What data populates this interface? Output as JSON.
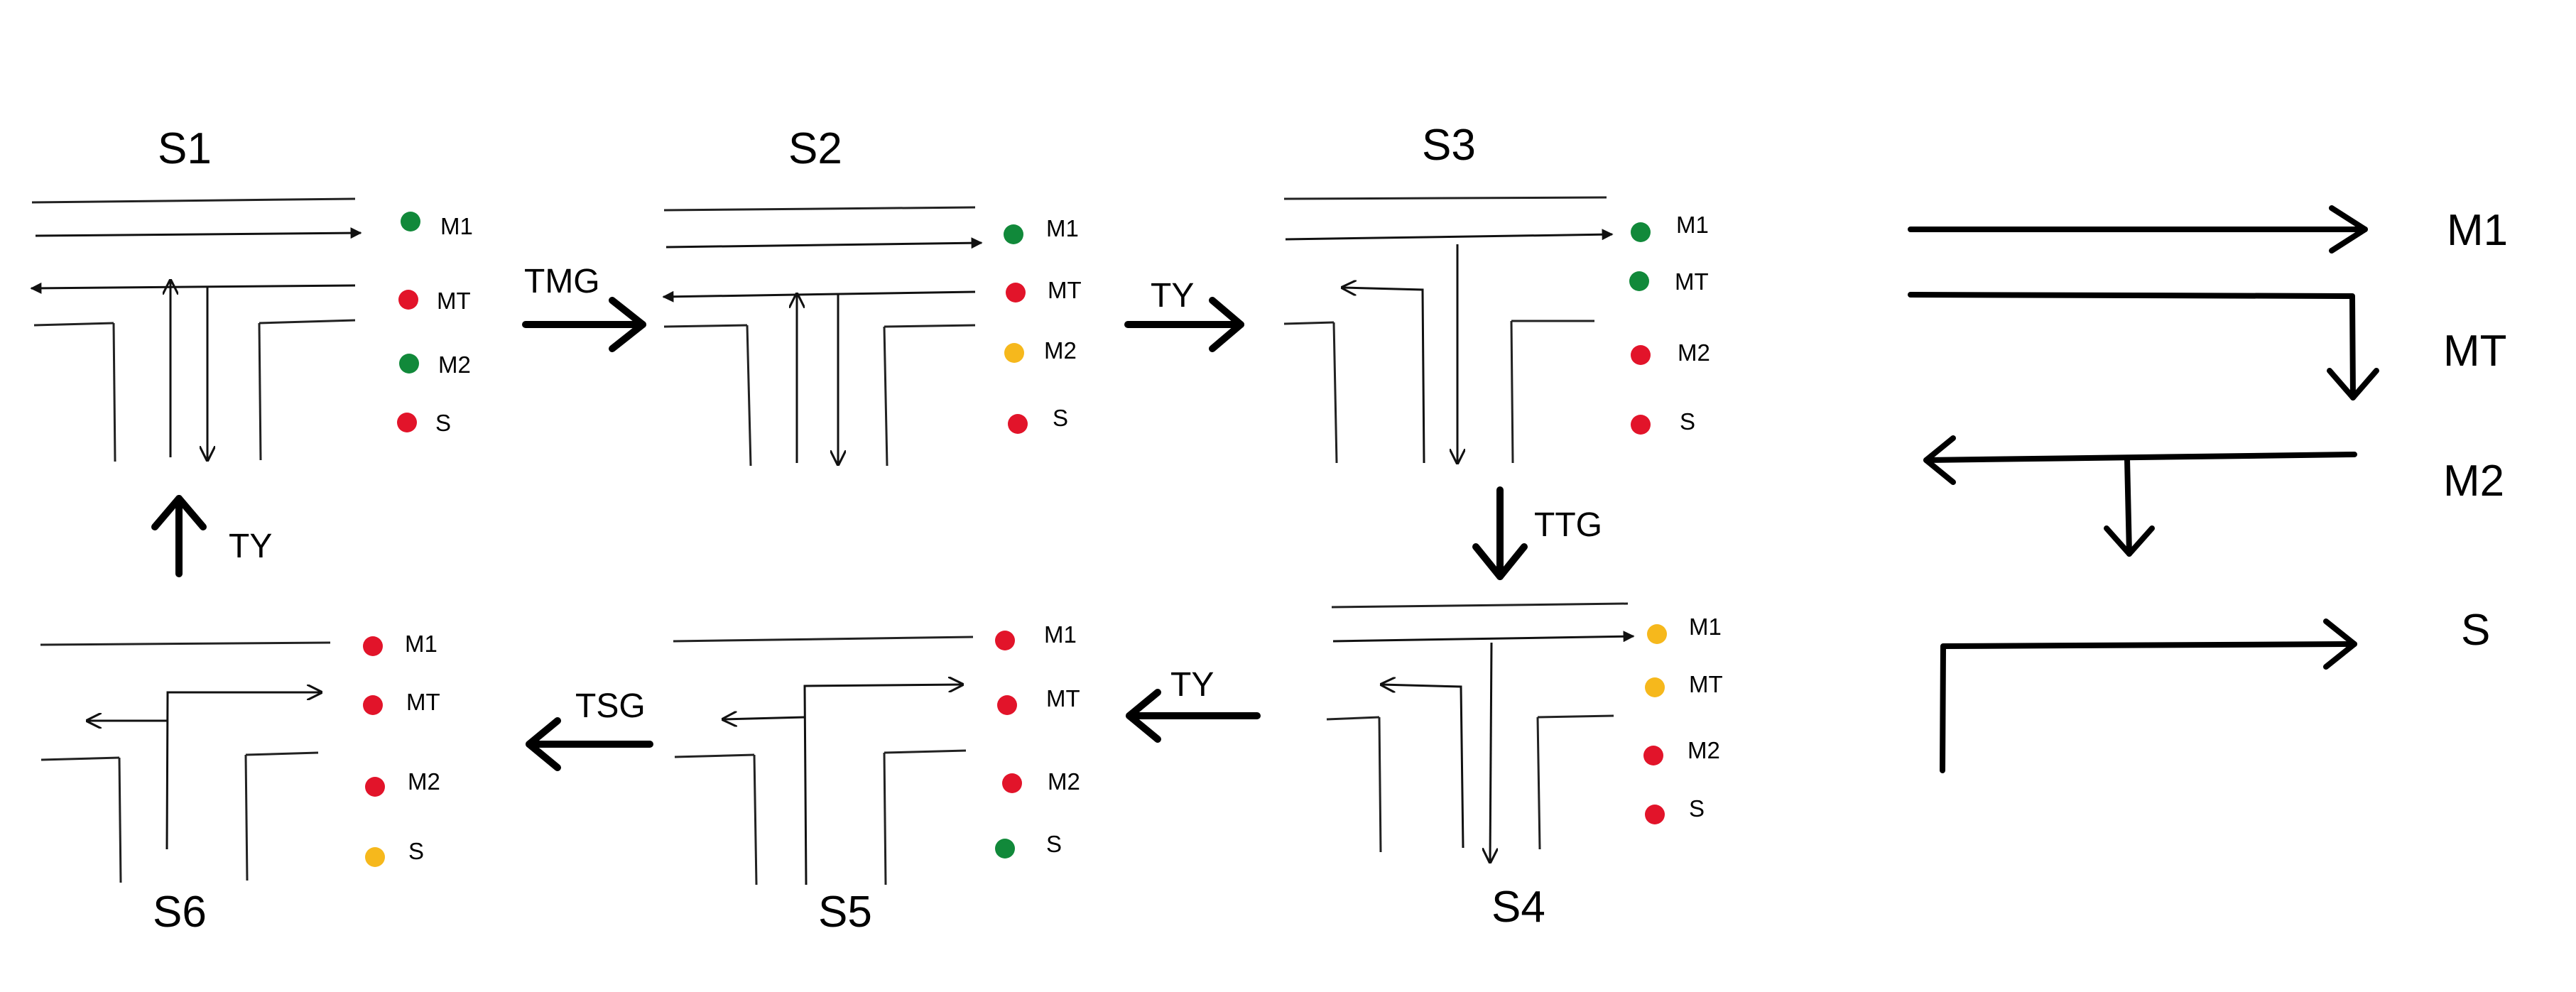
{
  "colors": {
    "green": "#11893a",
    "red": "#e2142a",
    "yellow": "#f6b81c"
  },
  "signal_labels": [
    "M1",
    "MT",
    "M2",
    "S"
  ],
  "states": [
    {
      "id": "S1",
      "title": "S1",
      "signals": [
        "green",
        "red",
        "green",
        "red"
      ]
    },
    {
      "id": "S2",
      "title": "S2",
      "signals": [
        "green",
        "red",
        "yellow",
        "red"
      ]
    },
    {
      "id": "S3",
      "title": "S3",
      "signals": [
        "green",
        "green",
        "red",
        "red"
      ]
    },
    {
      "id": "S4",
      "title": "S4",
      "signals": [
        "yellow",
        "yellow",
        "red",
        "red"
      ]
    },
    {
      "id": "S5",
      "title": "S5",
      "signals": [
        "red",
        "red",
        "red",
        "green"
      ]
    },
    {
      "id": "S6",
      "title": "S6",
      "signals": [
        "red",
        "red",
        "red",
        "yellow"
      ]
    }
  ],
  "transitions": [
    {
      "from": "S1",
      "to": "S2",
      "label": "TMG"
    },
    {
      "from": "S2",
      "to": "S3",
      "label": "TY"
    },
    {
      "from": "S3",
      "to": "S4",
      "label": "TTG"
    },
    {
      "from": "S4",
      "to": "S5",
      "label": "TY"
    },
    {
      "from": "S5",
      "to": "S6",
      "label": "TSG"
    },
    {
      "from": "S6",
      "to": "S1",
      "label": "TY"
    }
  ],
  "legend": [
    {
      "label": "M1"
    },
    {
      "label": "MT"
    },
    {
      "label": "M2"
    },
    {
      "label": "S"
    }
  ]
}
